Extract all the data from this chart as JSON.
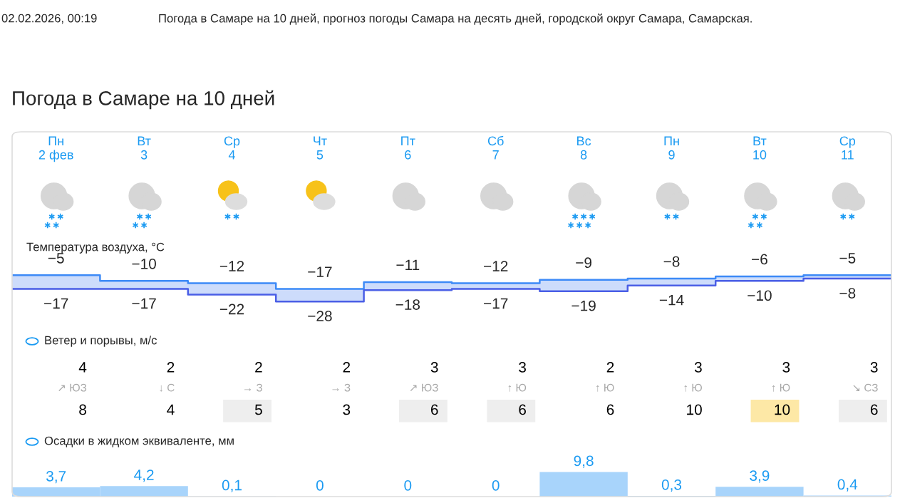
{
  "chart_data": [
    {
      "type": "step",
      "title": "Погода в Самаре на 10 дней",
      "subtitle": "Температура воздуха, °C",
      "annotations": [
        "02.02.2026, 00:19",
        "Погода в Самаре на 10 дней, прогноз погоды Самара на десять дней, городской округ Самара, Самарская."
      ],
      "categories": [
        "Пн\n2 фев",
        "Вт\n3",
        "Ср\n4",
        "Чт\n5",
        "Пт\n6",
        "Сб\n7",
        "Вс\n8",
        "Пн\n9",
        "Вт\n10",
        "Ср\n11"
      ],
      "series": [
        {
          "color": "#3d8af7",
          "values": [
            -5,
            -10,
            -12,
            -17,
            -11,
            -12,
            -9,
            -8,
            -6,
            -5
          ],
          "lower": [
            -17,
            -17,
            -22,
            -28,
            -18,
            -17,
            -19,
            -14,
            -10,
            -8
          ],
          "upper": [
            -5,
            -10,
            -12,
            -17,
            -11,
            -12,
            -9,
            -8,
            -6,
            -5
          ],
          "value_labels": [
            "−5",
            "−10",
            "−12",
            "−17",
            "−11",
            "−12",
            "−9",
            "−8",
            "−6",
            "−5"
          ]
        },
        {
          "color": "#4a5ee6",
          "values": [
            -17,
            -17,
            -22,
            -28,
            -18,
            -17,
            -19,
            -14,
            -10,
            -8
          ],
          "value_labels": [
            "−17",
            "−17",
            "−22",
            "−28",
            "−18",
            "−17",
            "−19",
            "−14",
            "−10",
            "−8"
          ]
        }
      ],
      "data_labels": true,
      "tick_labels": "x"
    },
    {
      "type": "other",
      "title": "Ветер и порывы, м/с",
      "annotations": [
        "4",
        "↗ ЮЗ",
        "8",
        "2",
        "↓ С",
        "4",
        "2",
        "→ З",
        "5",
        "2",
        "→ З",
        "3",
        "3",
        "↗ ЮЗ",
        "6",
        "3",
        "↑ Ю",
        "6",
        "2",
        "↑ Ю",
        "6",
        "3",
        "↑ Ю",
        "10",
        "3",
        "↑ Ю",
        "10",
        "3",
        "↘ СЗ",
        "6"
      ]
    },
    {
      "type": "bar",
      "title": "Осадки в жидком эквиваленте, мм",
      "categories": [
        null,
        null,
        null,
        null,
        null,
        null,
        null,
        null,
        null,
        null
      ],
      "values": [
        3.7,
        4.2,
        0.1,
        0,
        0,
        0,
        9.8,
        0.3,
        3.9,
        0.4
      ],
      "value_labels": [
        "3,7",
        "4,2",
        "0,1",
        "0",
        "0",
        "0",
        "9,8",
        "0,3",
        "3,9",
        "0,4"
      ],
      "color": "#a8d4fb",
      "tick_labels": false
    }
  ]
}
